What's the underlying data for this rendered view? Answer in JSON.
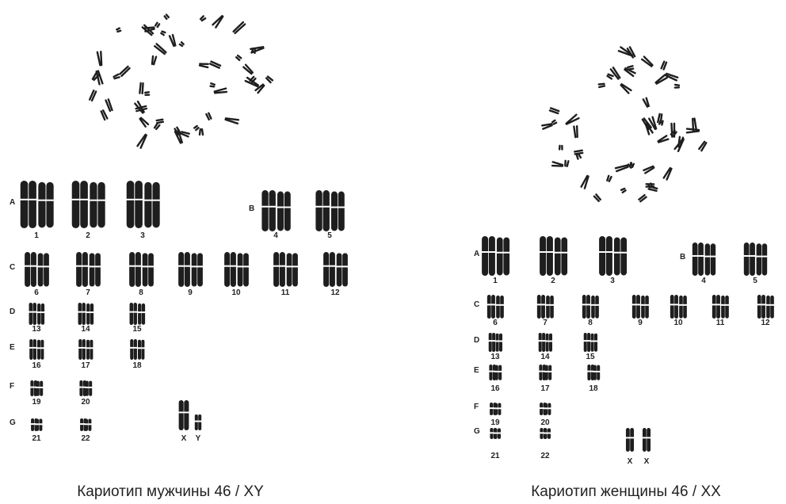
{
  "panels": [
    {
      "caption": "Кариотип мужчины 46 / XY",
      "groups": [
        {
          "label": "A",
          "chromosomes": [
            "1",
            "2",
            "3"
          ]
        },
        {
          "label": "B",
          "chromosomes": [
            "4",
            "5"
          ]
        },
        {
          "label": "C",
          "chromosomes": [
            "6",
            "7",
            "8",
            "9",
            "10",
            "11",
            "12"
          ]
        },
        {
          "label": "D",
          "chromosomes": [
            "13",
            "14",
            "15"
          ]
        },
        {
          "label": "E",
          "chromosomes": [
            "16",
            "17",
            "18"
          ]
        },
        {
          "label": "F",
          "chromosomes": [
            "19",
            "20"
          ]
        },
        {
          "label": "G",
          "chromosomes": [
            "21",
            "22"
          ]
        }
      ],
      "sex": [
        "X",
        "Y"
      ]
    },
    {
      "caption": "Кариотип женщины 46 / XX",
      "groups": [
        {
          "label": "A",
          "chromosomes": [
            "1",
            "2",
            "3"
          ]
        },
        {
          "label": "B",
          "chromosomes": [
            "4",
            "5"
          ]
        },
        {
          "label": "C",
          "chromosomes": [
            "6",
            "7",
            "8",
            "9",
            "10",
            "11",
            "12"
          ]
        },
        {
          "label": "D",
          "chromosomes": [
            "13",
            "14",
            "15"
          ]
        },
        {
          "label": "E",
          "chromosomes": [
            "16",
            "17",
            "18"
          ]
        },
        {
          "label": "F",
          "chromosomes": [
            "19",
            "20"
          ]
        },
        {
          "label": "G",
          "chromosomes": [
            "21",
            "22"
          ]
        }
      ],
      "sex": [
        "X",
        "X"
      ]
    }
  ]
}
